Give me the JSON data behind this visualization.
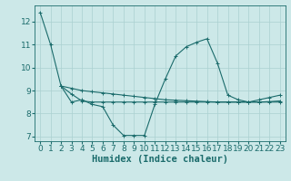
{
  "title": "",
  "xlabel": "Humidex (Indice chaleur)",
  "background_color": "#cce8e8",
  "line_color": "#1a6b6b",
  "grid_color": "#aad0d0",
  "xlim": [
    -0.5,
    23.5
  ],
  "ylim": [
    6.8,
    12.7
  ],
  "yticks": [
    7,
    8,
    9,
    10,
    11,
    12
  ],
  "xticks": [
    0,
    1,
    2,
    3,
    4,
    5,
    6,
    7,
    8,
    9,
    10,
    11,
    12,
    13,
    14,
    15,
    16,
    17,
    18,
    19,
    20,
    21,
    22,
    23
  ],
  "series1_x": [
    0,
    1,
    2,
    3,
    4,
    5,
    6,
    7,
    8,
    9,
    10,
    11,
    12,
    13,
    14,
    15,
    16,
    17,
    18,
    19,
    20,
    21,
    22,
    23
  ],
  "series1_y": [
    12.4,
    11.0,
    9.2,
    8.5,
    8.6,
    8.4,
    8.3,
    7.5,
    7.05,
    7.05,
    7.05,
    8.4,
    9.5,
    10.5,
    10.9,
    11.1,
    11.25,
    10.2,
    8.8,
    8.6,
    8.5,
    8.6,
    8.7,
    8.8
  ],
  "series2_x": [
    2,
    3,
    4,
    5,
    6,
    7,
    8,
    9,
    10,
    11,
    12,
    13,
    14,
    15,
    16,
    17,
    18,
    19,
    20,
    21,
    22,
    23
  ],
  "series2_y": [
    9.2,
    9.1,
    9.0,
    8.95,
    8.9,
    8.85,
    8.8,
    8.75,
    8.7,
    8.65,
    8.6,
    8.58,
    8.56,
    8.54,
    8.52,
    8.5,
    8.5,
    8.5,
    8.5,
    8.5,
    8.52,
    8.55
  ],
  "series3_x": [
    2,
    3,
    4,
    5,
    6,
    7,
    8,
    9,
    10,
    11,
    12,
    13,
    14,
    15,
    16,
    17,
    18,
    19,
    20,
    21,
    22,
    23
  ],
  "series3_y": [
    9.2,
    8.85,
    8.55,
    8.5,
    8.5,
    8.5,
    8.5,
    8.5,
    8.5,
    8.5,
    8.5,
    8.5,
    8.5,
    8.5,
    8.5,
    8.5,
    8.5,
    8.5,
    8.5,
    8.5,
    8.5,
    8.5
  ],
  "xlabel_fontsize": 7.5,
  "tick_fontsize": 6.5,
  "linewidth": 0.8,
  "marker_size": 2.5
}
